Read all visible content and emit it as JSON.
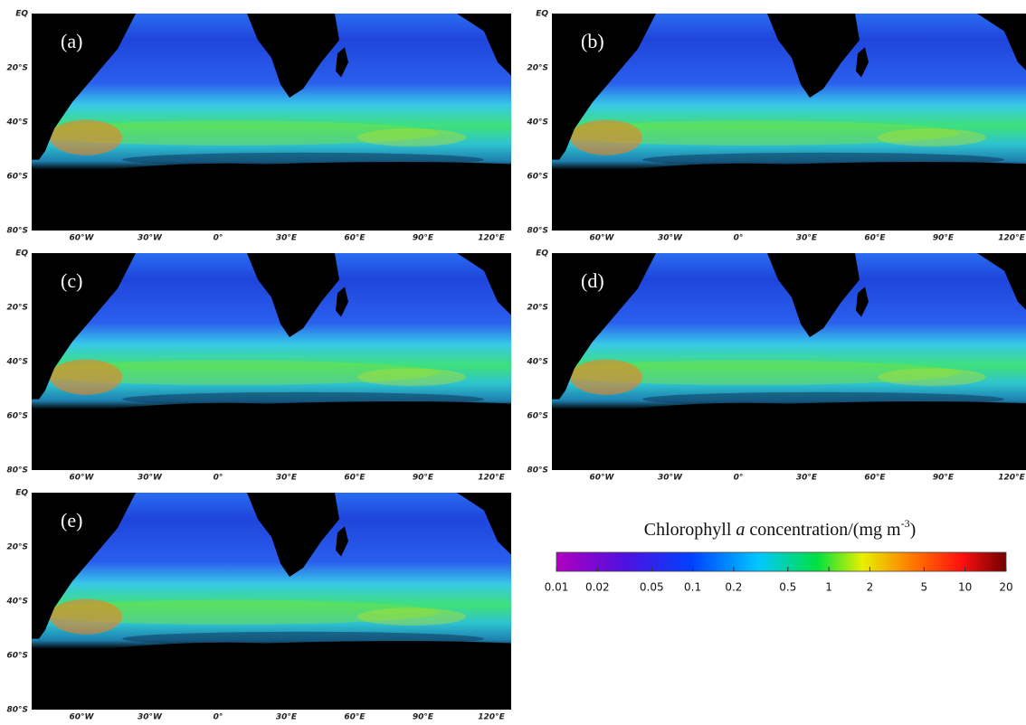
{
  "panels": [
    {
      "label": "(a)"
    },
    {
      "label": "(b)"
    },
    {
      "label": "(c)"
    },
    {
      "label": "(d)"
    },
    {
      "label": "(e)"
    }
  ],
  "lat_labels": [
    "EQ",
    "20°S",
    "40°S",
    "60°S",
    "80°S"
  ],
  "lon_labels": [
    "60°W",
    "30°W",
    "0°",
    "30°E",
    "60°E",
    "90°E",
    "120°E"
  ],
  "colorbar": {
    "title_parts": [
      "Chlorophyll ",
      "a",
      " concentration/(mg  m",
      "-3",
      ")"
    ],
    "log": true,
    "lim": [
      0.01,
      20
    ],
    "ticks": [
      0.01,
      0.02,
      0.05,
      0.1,
      0.2,
      0.5,
      1,
      2,
      5,
      10,
      20
    ]
  }
}
